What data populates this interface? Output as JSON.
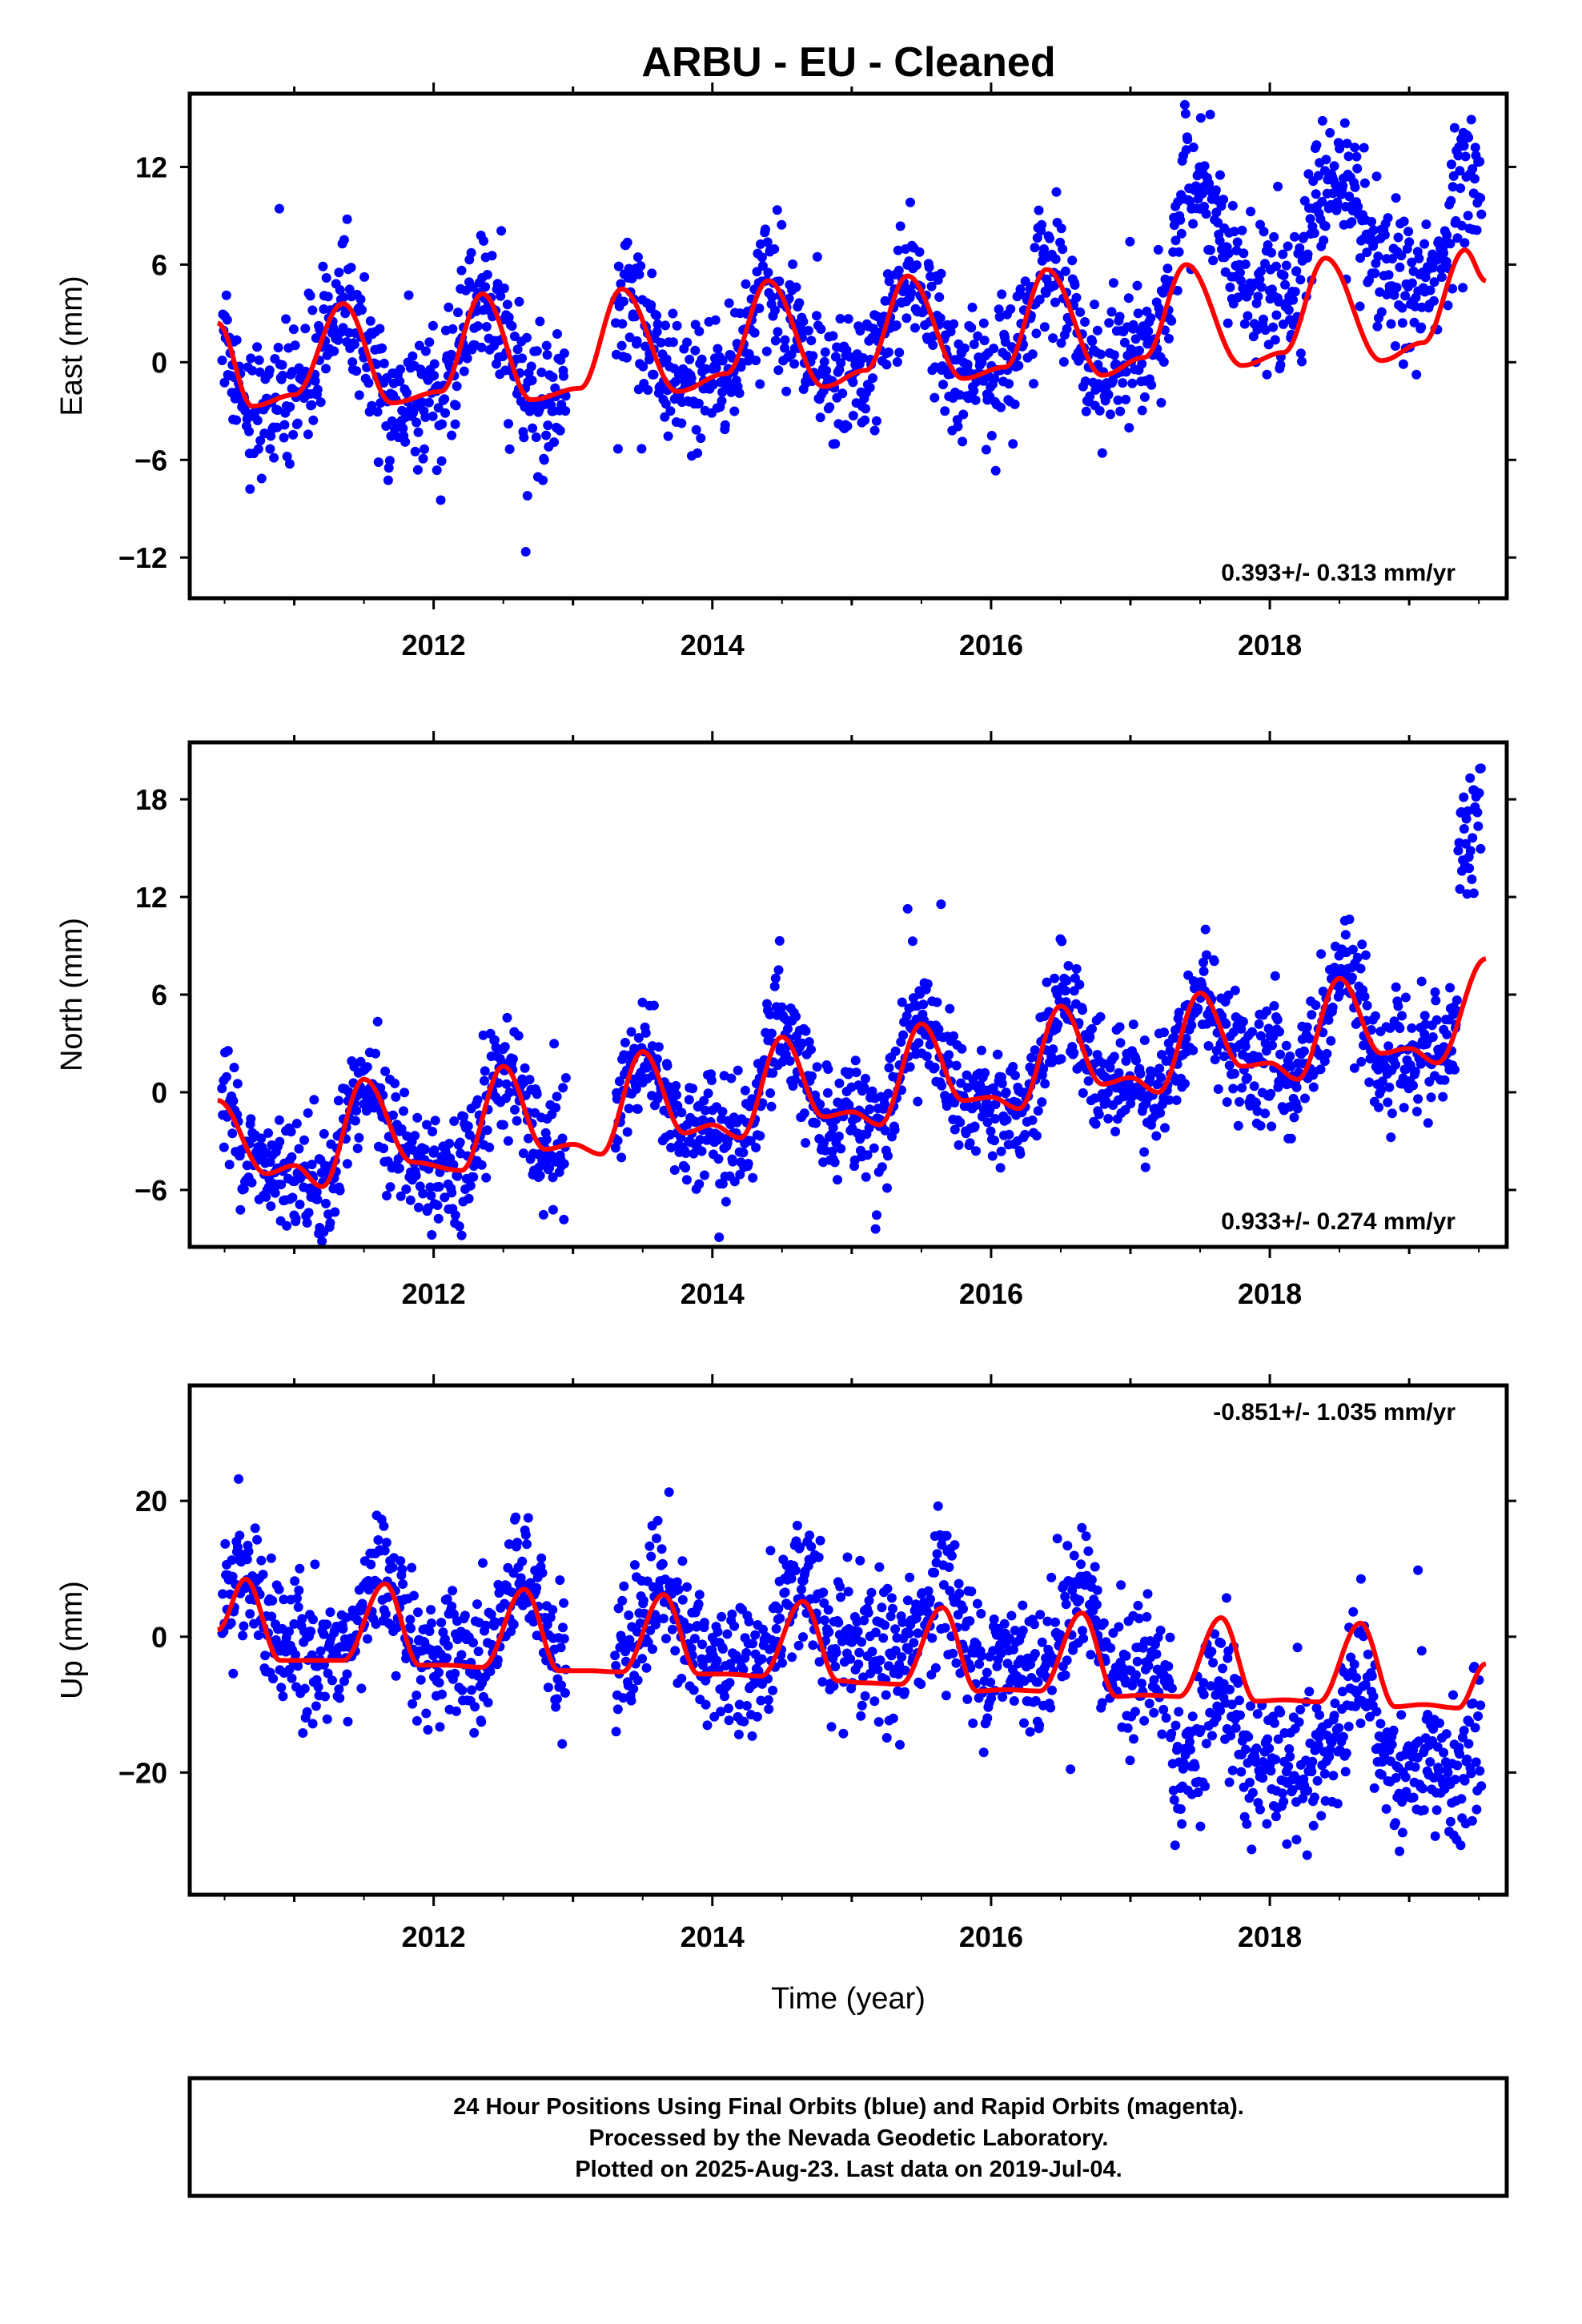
{
  "title": "ARBU  - EU - Cleaned",
  "colors": {
    "points": "#0000ff",
    "model": "#ff0000",
    "frame": "#000000"
  },
  "chart_data": [
    {
      "type": "scatter",
      "ylabel": "East (mm)",
      "xlim": [
        2010.25,
        2019.7
      ],
      "ylim": [
        -14.5,
        16.5
      ],
      "yticks": [
        -12,
        -6,
        0,
        6,
        12
      ],
      "xticks": [
        2012,
        2014,
        2016,
        2018
      ],
      "rate_text": "0.393+/- 0.313 mm/yr",
      "series": [
        {
          "points_color": "#0000ff",
          "model_color": "#ff0000"
        }
      ],
      "model": {
        "x": [
          2010.45,
          2010.7,
          2011.0,
          2011.35,
          2011.7,
          2012.05,
          2012.35,
          2012.7,
          2013.05,
          2013.35,
          2013.75,
          2014.1,
          2014.4,
          2014.8,
          2015.1,
          2015.4,
          2015.8,
          2016.1,
          2016.4,
          2016.8,
          2017.1,
          2017.4,
          2017.8,
          2018.1,
          2018.4,
          2018.8,
          2019.1,
          2019.4,
          2019.55
        ],
        "y": [
          2.4,
          -2.7,
          -2.0,
          3.6,
          -2.5,
          -1.8,
          4.2,
          -2.3,
          -1.6,
          4.5,
          -1.8,
          -0.7,
          5.0,
          -1.5,
          -0.5,
          5.3,
          -1.0,
          -0.3,
          5.7,
          -0.8,
          0.3,
          6.0,
          -0.2,
          0.6,
          6.4,
          0.1,
          1.2,
          6.9,
          5.0
        ]
      },
      "scatter_model": {
        "points": 2200
      }
    },
    {
      "type": "scatter",
      "ylabel": "North (mm)",
      "xlim": [
        2010.25,
        2019.7
      ],
      "ylim": [
        -9.5,
        21.5
      ],
      "yticks": [
        -6,
        0,
        6,
        12,
        18
      ],
      "xticks": [
        2012,
        2014,
        2016,
        2018
      ],
      "rate_text": "0.933+/- 0.274 mm/yr",
      "model": {
        "x": [
          2010.45,
          2010.8,
          2011.0,
          2011.2,
          2011.5,
          2011.85,
          2012.2,
          2012.5,
          2012.8,
          2013.0,
          2013.2,
          2013.5,
          2013.8,
          2014.0,
          2014.2,
          2014.5,
          2014.8,
          2015.0,
          2015.2,
          2015.5,
          2015.8,
          2016.0,
          2016.2,
          2016.5,
          2016.8,
          2017.0,
          2017.2,
          2017.5,
          2017.8,
          2018.0,
          2018.2,
          2018.5,
          2018.8,
          2019.0,
          2019.2,
          2019.55
        ],
        "y": [
          -0.5,
          -5.0,
          -4.5,
          -5.8,
          0.8,
          -4.3,
          -4.8,
          1.6,
          -3.5,
          -3.2,
          -3.8,
          2.5,
          -2.5,
          -2.0,
          -2.8,
          3.4,
          -1.5,
          -1.2,
          -2.0,
          4.2,
          -0.5,
          -0.3,
          -1.0,
          5.3,
          0.5,
          0.9,
          0.0,
          6.1,
          1.6,
          1.8,
          0.8,
          7.0,
          2.4,
          2.7,
          1.8,
          8.2
        ]
      }
    },
    {
      "type": "scatter",
      "ylabel": "Up (mm)",
      "xlabel": "Time (year)",
      "xlim": [
        2010.25,
        2019.7
      ],
      "ylim": [
        -38,
        37
      ],
      "yticks": [
        -20,
        0,
        20
      ],
      "xticks": [
        2012,
        2014,
        2016,
        2018
      ],
      "rate_text": "-0.851+/- 1.035 mm/yr",
      "model": {
        "x": [
          2010.45,
          2010.65,
          2010.9,
          2011.1,
          2011.35,
          2011.65,
          2011.9,
          2012.1,
          2012.35,
          2012.65,
          2012.9,
          2013.1,
          2013.35,
          2013.65,
          2013.9,
          2014.1,
          2014.35,
          2014.65,
          2014.9,
          2015.1,
          2015.35,
          2015.65,
          2015.9,
          2016.1,
          2016.35,
          2016.65,
          2016.9,
          2017.1,
          2017.35,
          2017.65,
          2017.9,
          2018.1,
          2018.35,
          2018.65,
          2018.9,
          2019.1,
          2019.35,
          2019.55
        ],
        "y": [
          1,
          8.5,
          -3.5,
          -3.5,
          -3.5,
          7.8,
          -4.2,
          -4.2,
          -4.5,
          7.0,
          -5.0,
          -5.0,
          -5.2,
          6.2,
          -5.5,
          -5.5,
          -5.8,
          5.2,
          -6.5,
          -6.8,
          -7.0,
          4.3,
          -8.0,
          -7.8,
          -8.0,
          3.5,
          -8.8,
          -8.6,
          -8.8,
          2.8,
          -9.5,
          -9.3,
          -9.6,
          2.0,
          -10.3,
          -10.0,
          -10.5,
          -4.0
        ]
      }
    }
  ],
  "rates": [
    "0.393+/- 0.313 mm/yr",
    "0.933+/- 0.274 mm/yr",
    "-0.851+/- 1.035 mm/yr"
  ],
  "footer": {
    "line1": "24 Hour Positions Using Final Orbits (blue) and Rapid Orbits (magenta).",
    "line2": "Processed by the Nevada Geodetic Laboratory.",
    "line3": "Plotted on 2025-Aug-23. Last data on 2019-Jul-04."
  }
}
